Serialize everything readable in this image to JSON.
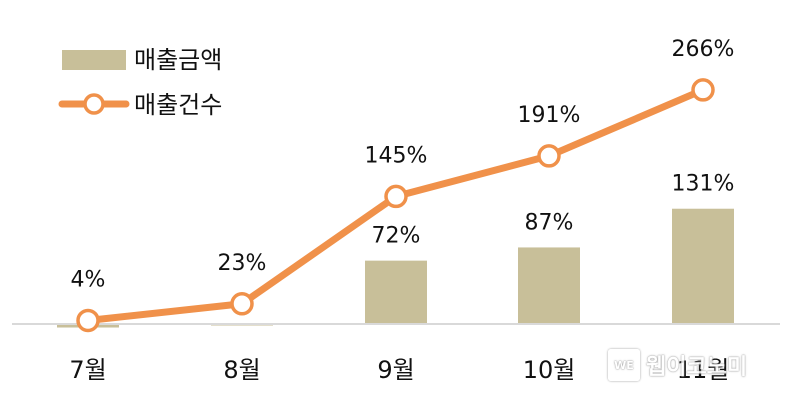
{
  "chart_data": {
    "type": "bar+line",
    "categories": [
      "7월",
      "8월",
      "9월",
      "10월",
      "11월"
    ],
    "series": [
      {
        "name": "매출금액",
        "kind": "bar",
        "values": [
          -4,
          -1,
          72,
          87,
          131
        ],
        "labels": [
          "",
          "",
          "72%",
          "87%",
          "131%"
        ],
        "color": "#c8bf99"
      },
      {
        "name": "매출건수",
        "kind": "line",
        "values": [
          4,
          23,
          145,
          191,
          266
        ],
        "labels": [
          "4%",
          "23%",
          "145%",
          "191%",
          "266%"
        ],
        "color": "#f0914a"
      }
    ],
    "ylim": [
      -10,
      290
    ],
    "legend_position": "top-left"
  },
  "legend": {
    "bar_label": "매출금액",
    "line_label": "매출건수"
  },
  "watermark": {
    "badge": "WE",
    "text": "웹이코노미"
  },
  "colors": {
    "bar": "#c8bf99",
    "line": "#f0914a",
    "axis": "#d9d9d9",
    "marker_fill": "#ffffff"
  }
}
